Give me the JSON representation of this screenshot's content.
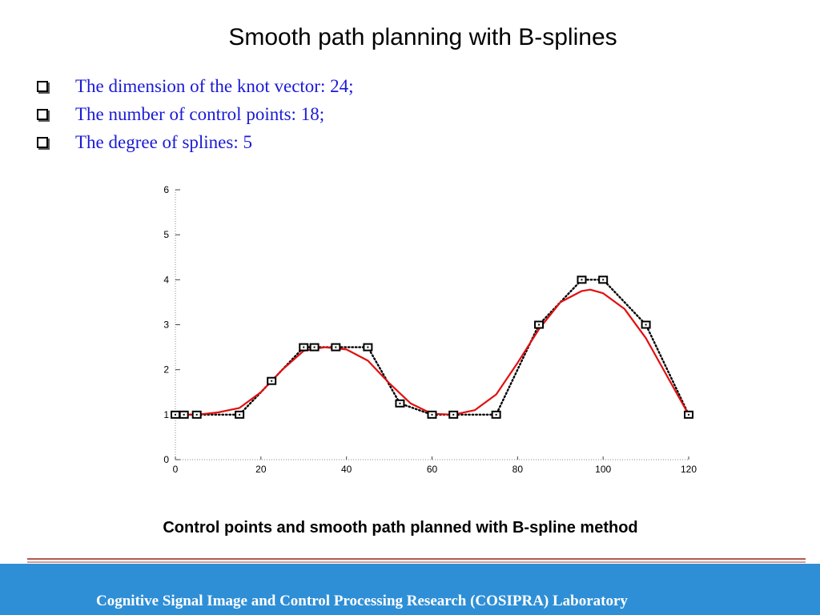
{
  "slide": {
    "title": "Smooth path planning with B-splines",
    "bullets": [
      "The dimension of the knot vector: 24;",
      "The number of control points: 18;",
      "The degree of splines: 5"
    ],
    "caption": "Control points and smooth path planned with B-spline method",
    "footer": "Cognitive Signal Image and Control Processing Research (COSIPRA) Laboratory"
  },
  "chart_data": {
    "type": "line",
    "xlim": [
      0,
      120
    ],
    "ylim": [
      0,
      6
    ],
    "xticks": [
      0,
      20,
      40,
      60,
      80,
      100,
      120
    ],
    "yticks": [
      0,
      1,
      2,
      3,
      4,
      5,
      6
    ],
    "grid": false,
    "series": [
      {
        "role": "control-polygon",
        "color": "#000000",
        "style": "dotted",
        "marker": "square",
        "points": [
          [
            0,
            1
          ],
          [
            2,
            1
          ],
          [
            5,
            1
          ],
          [
            15,
            1
          ],
          [
            22.5,
            1.75
          ],
          [
            30,
            2.5
          ],
          [
            32.5,
            2.5
          ],
          [
            37.5,
            2.5
          ],
          [
            45,
            2.5
          ],
          [
            52.5,
            1.25
          ],
          [
            60,
            1
          ],
          [
            65,
            1
          ],
          [
            75,
            1
          ],
          [
            85,
            3
          ],
          [
            95,
            4
          ],
          [
            100,
            4
          ],
          [
            110,
            3
          ],
          [
            120,
            1
          ]
        ]
      },
      {
        "role": "b-spline-path",
        "color": "#e01010",
        "style": "solid",
        "points": [
          [
            0,
            1
          ],
          [
            5,
            1
          ],
          [
            10,
            1.05
          ],
          [
            15,
            1.15
          ],
          [
            20,
            1.5
          ],
          [
            25,
            2.0
          ],
          [
            30,
            2.42
          ],
          [
            35,
            2.5
          ],
          [
            40,
            2.45
          ],
          [
            45,
            2.2
          ],
          [
            50,
            1.7
          ],
          [
            55,
            1.25
          ],
          [
            60,
            1.02
          ],
          [
            65,
            1.0
          ],
          [
            70,
            1.1
          ],
          [
            75,
            1.45
          ],
          [
            80,
            2.15
          ],
          [
            85,
            2.9
          ],
          [
            90,
            3.5
          ],
          [
            95,
            3.75
          ],
          [
            97,
            3.78
          ],
          [
            100,
            3.7
          ],
          [
            105,
            3.35
          ],
          [
            110,
            2.7
          ],
          [
            115,
            1.85
          ],
          [
            120,
            1
          ]
        ]
      }
    ]
  }
}
